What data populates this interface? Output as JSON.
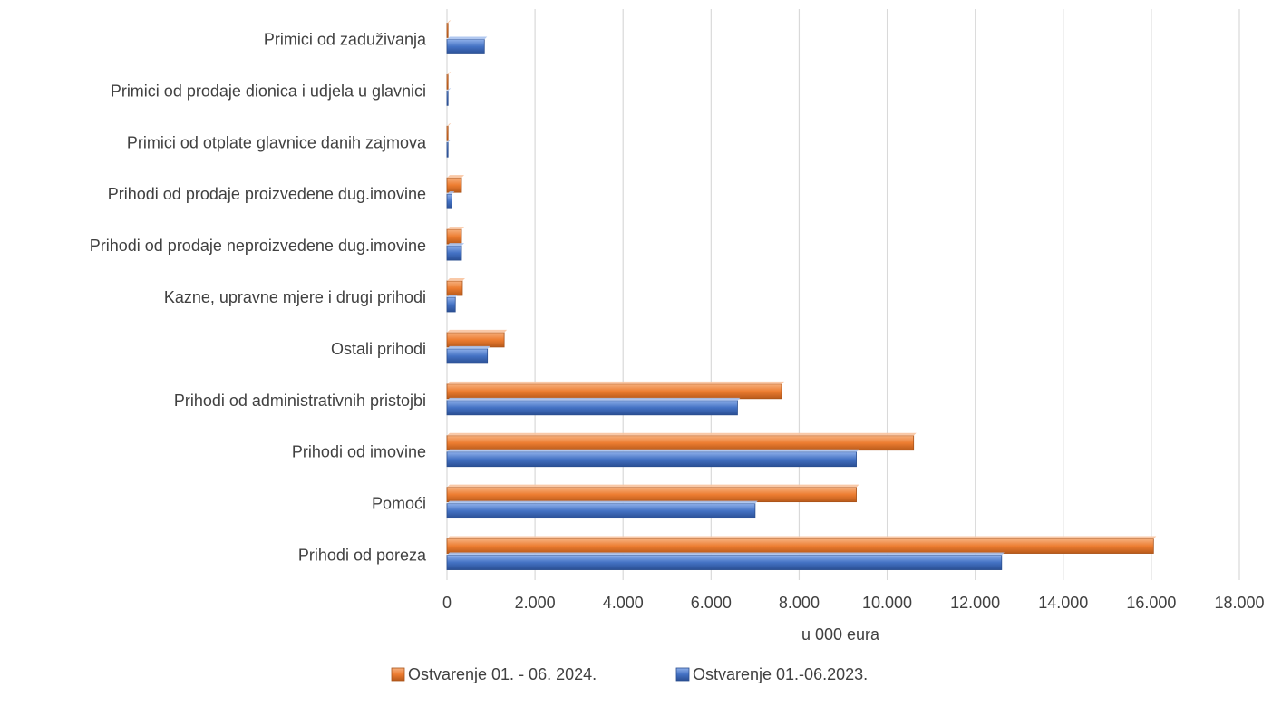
{
  "chart_data": {
    "type": "bar",
    "orientation": "horizontal",
    "title": "",
    "xlabel": "u 000 eura",
    "ylabel": "",
    "xlim": [
      0,
      18000
    ],
    "x_ticks": [
      0,
      2000,
      4000,
      6000,
      8000,
      10000,
      12000,
      14000,
      16000,
      18000
    ],
    "x_tick_labels": [
      "0",
      "2.000",
      "4.000",
      "6.000",
      "8.000",
      "10.000",
      "12.000",
      "14.000",
      "16.000",
      "18.000"
    ],
    "grid": true,
    "legend_position": "bottom",
    "categories": [
      "Prihodi od poreza",
      "Pomoći",
      "Prihodi od imovine",
      "Prihodi od administrativnih pristojbi",
      "Ostali prihodi",
      "Kazne, upravne mjere i drugi prihodi",
      "Prihodi od prodaje neproizvedene dug.imovine",
      "Prihodi od prodaje proizvedene dug.imovine",
      "Primici od otplate glavnice danih zajmova",
      "Primici od prodaje dionica i udjela u glavnici",
      "Primici od zaduživanja"
    ],
    "series": [
      {
        "name": "Ostvarenje 01. - 06. 2024.",
        "color": "#ED7D31",
        "values": [
          16050,
          9300,
          10600,
          7600,
          1300,
          350,
          330,
          330,
          0,
          0,
          0
        ]
      },
      {
        "name": "Ostvarenje 01.-06.2023.",
        "color": "#4472C4",
        "values": [
          12600,
          7000,
          9300,
          6600,
          920,
          190,
          330,
          110,
          0,
          0,
          850
        ]
      }
    ]
  }
}
